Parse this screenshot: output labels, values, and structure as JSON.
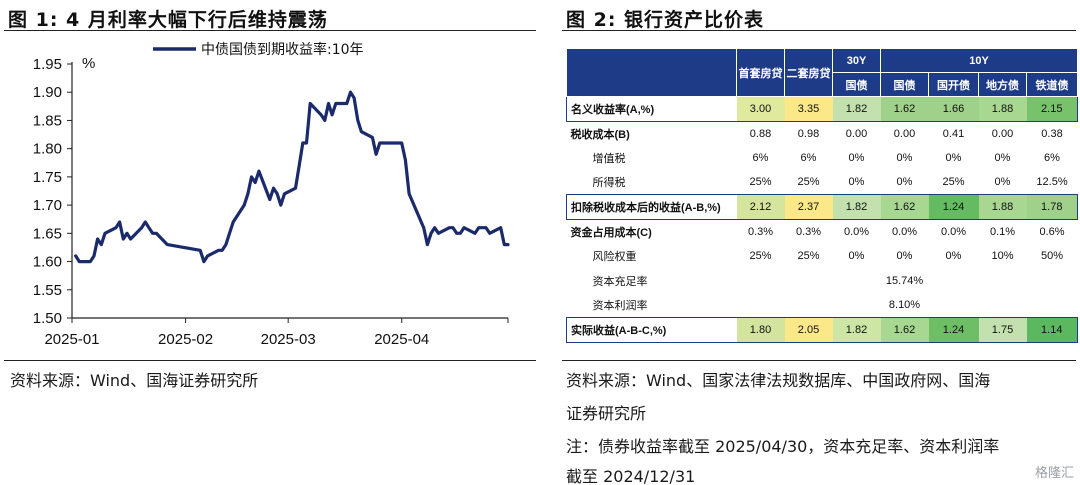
{
  "left": {
    "title": "图 1:  4 月利率大幅下行后维持震荡",
    "source": "资料来源：Wind、国海证券研究所"
  },
  "right": {
    "title": "图 2:  银行资产比价表",
    "source_line1": "资料来源：Wind、国家法律法规数据库、中国政府网、国海",
    "source_line2": "证券研究所",
    "note_line1": "注：债券收益率截至 2025/04/30，资本充足率、资本利润率",
    "note_line2": "截至 2024/12/31"
  },
  "chart_data": {
    "type": "line",
    "ylabel": "%",
    "ylim": [
      1.5,
      1.95
    ],
    "yticks": [
      "1.95",
      "1.90",
      "1.85",
      "1.80",
      "1.75",
      "1.70",
      "1.65",
      "1.60",
      "1.55",
      "1.50"
    ],
    "xticks": [
      "2025-01",
      "2025-02",
      "2025-03",
      "2025-04"
    ],
    "legend_placement": "top",
    "grid": false,
    "series": [
      {
        "name": "中债国债到期收益率:10年",
        "color": "#1b2a6b",
        "x": [
          "2025-01-02",
          "2025-01-03",
          "2025-01-06",
          "2025-01-07",
          "2025-01-08",
          "2025-01-09",
          "2025-01-10",
          "2025-01-13",
          "2025-01-14",
          "2025-01-15",
          "2025-01-16",
          "2025-01-17",
          "2025-01-20",
          "2025-01-21",
          "2025-01-22",
          "2025-01-23",
          "2025-01-24",
          "2025-01-27",
          "2025-02-05",
          "2025-02-06",
          "2025-02-07",
          "2025-02-10",
          "2025-02-11",
          "2025-02-12",
          "2025-02-13",
          "2025-02-14",
          "2025-02-17",
          "2025-02-18",
          "2025-02-19",
          "2025-02-20",
          "2025-02-21",
          "2025-02-24",
          "2025-02-25",
          "2025-02-26",
          "2025-02-27",
          "2025-02-28",
          "2025-03-03",
          "2025-03-04",
          "2025-03-05",
          "2025-03-06",
          "2025-03-07",
          "2025-03-10",
          "2025-03-11",
          "2025-03-12",
          "2025-03-13",
          "2025-03-14",
          "2025-03-17",
          "2025-03-18",
          "2025-03-19",
          "2025-03-20",
          "2025-03-21",
          "2025-03-24",
          "2025-03-25",
          "2025-03-26",
          "2025-03-27",
          "2025-03-28",
          "2025-03-31",
          "2025-04-01",
          "2025-04-02",
          "2025-04-03",
          "2025-04-07",
          "2025-04-08",
          "2025-04-09",
          "2025-04-10",
          "2025-04-11",
          "2025-04-14",
          "2025-04-15",
          "2025-04-16",
          "2025-04-17",
          "2025-04-18",
          "2025-04-21",
          "2025-04-22",
          "2025-04-23",
          "2025-04-24",
          "2025-04-25",
          "2025-04-28",
          "2025-04-29",
          "2025-04-30"
        ],
        "y": [
          1.61,
          1.6,
          1.6,
          1.61,
          1.64,
          1.63,
          1.65,
          1.66,
          1.67,
          1.64,
          1.65,
          1.64,
          1.66,
          1.67,
          1.66,
          1.65,
          1.65,
          1.63,
          1.62,
          1.6,
          1.61,
          1.62,
          1.62,
          1.63,
          1.65,
          1.67,
          1.7,
          1.72,
          1.75,
          1.74,
          1.76,
          1.71,
          1.73,
          1.72,
          1.7,
          1.72,
          1.73,
          1.77,
          1.81,
          1.81,
          1.88,
          1.86,
          1.85,
          1.88,
          1.86,
          1.88,
          1.88,
          1.9,
          1.89,
          1.85,
          1.83,
          1.82,
          1.79,
          1.81,
          1.81,
          1.81,
          1.81,
          1.81,
          1.78,
          1.72,
          1.66,
          1.63,
          1.65,
          1.66,
          1.65,
          1.66,
          1.66,
          1.65,
          1.65,
          1.66,
          1.65,
          1.66,
          1.66,
          1.66,
          1.65,
          1.66,
          1.63,
          1.63
        ]
      }
    ]
  },
  "table": {
    "header_row1": [
      "",
      "首套房贷",
      "二套房贷",
      "30Y",
      "10Y"
    ],
    "header_row2": [
      "国债",
      "国债",
      "国开债",
      "地方债",
      "铁道债"
    ],
    "rows": [
      {
        "label": "名义收益率(A,%)",
        "cells": [
          "3.00",
          "3.35",
          "1.82",
          "1.62",
          "1.66",
          "1.88",
          "2.15"
        ],
        "colors": [
          "#e0ea9e",
          "#fbe989",
          "#c2e1ae",
          "#9fd18a",
          "#9fd18a",
          "#a8d791",
          "#77c26a"
        ],
        "boxed": true,
        "bold": true
      },
      {
        "label": "税收成本(B)",
        "cells": [
          "0.88",
          "0.98",
          "0.00",
          "0.00",
          "0.41",
          "0.00",
          "0.38"
        ],
        "bold": true
      },
      {
        "label": "增值税",
        "cells": [
          "6%",
          "6%",
          "0%",
          "0%",
          "0%",
          "0%",
          "6%"
        ],
        "sub": true
      },
      {
        "label": "所得税",
        "cells": [
          "25%",
          "25%",
          "0%",
          "0%",
          "25%",
          "0%",
          "12.5%"
        ],
        "sub": true
      },
      {
        "label": "扣除税收成本后的收益(A-B,%)",
        "cells": [
          "2.12",
          "2.37",
          "1.82",
          "1.62",
          "1.24",
          "1.88",
          "1.78"
        ],
        "colors": [
          "#d6e59e",
          "#fbe989",
          "#c2e1ae",
          "#a8d791",
          "#64bb62",
          "#a8d791",
          "#9fd18a"
        ],
        "boxed": true,
        "bold": true
      },
      {
        "label": "资金占用成本(C)",
        "cells": [
          "0.3%",
          "0.3%",
          "0.0%",
          "0.0%",
          "0.0%",
          "0.1%",
          "0.6%"
        ],
        "bold": true
      },
      {
        "label": "风险权重",
        "cells": [
          "25%",
          "25%",
          "0%",
          "0%",
          "0%",
          "10%",
          "50%"
        ],
        "sub": true
      },
      {
        "label": "资本充足率",
        "merged": "15.74%",
        "sub": true
      },
      {
        "label": "资本利润率",
        "merged": "8.10%",
        "sub": true
      },
      {
        "label": "实际收益(A-B-C,%)",
        "cells": [
          "1.80",
          "2.05",
          "1.82",
          "1.62",
          "1.24",
          "1.75",
          "1.14"
        ],
        "colors": [
          "#d3e49f",
          "#fbe989",
          "#cde6a6",
          "#a8d791",
          "#6dbe64",
          "#c2e1ae",
          "#5cb85f"
        ],
        "boxed": true,
        "bold": true
      }
    ]
  },
  "watermark": "格隆汇"
}
